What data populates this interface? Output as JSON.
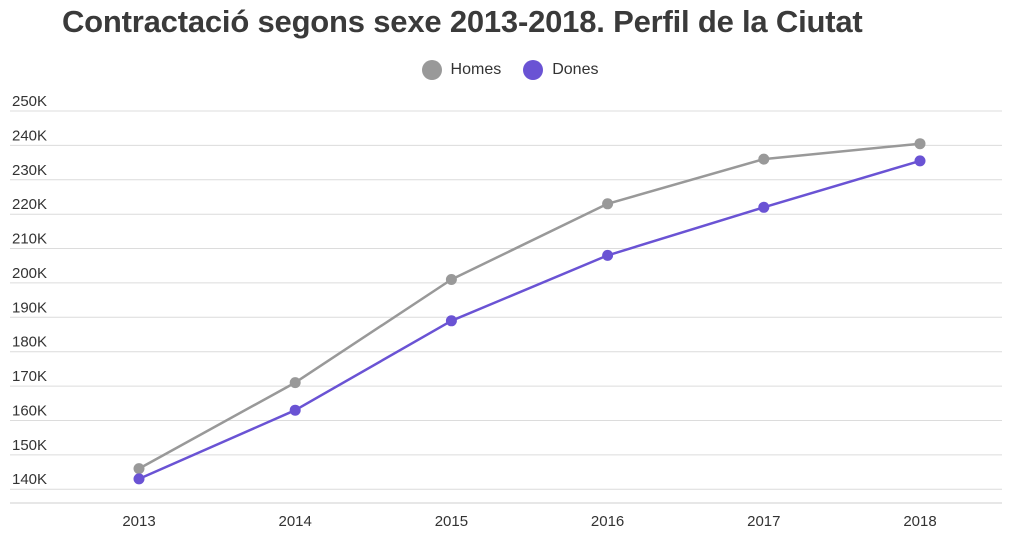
{
  "chart_data": {
    "type": "line",
    "title": "Contractació segons sexe 2013-2018. Perfil de la Ciutat",
    "xlabel": "",
    "ylabel": "",
    "categories": [
      "2013",
      "2014",
      "2015",
      "2016",
      "2017",
      "2018"
    ],
    "series": [
      {
        "name": "Homes",
        "color": "#999999",
        "values": [
          146000,
          171000,
          201000,
          223000,
          236000,
          240500
        ]
      },
      {
        "name": "Dones",
        "color": "#6a53d4",
        "values": [
          143000,
          163000,
          189000,
          208000,
          222000,
          235500
        ]
      }
    ],
    "ylim": [
      136000,
      250000
    ],
    "yticks": [
      140000,
      150000,
      160000,
      170000,
      180000,
      190000,
      200000,
      210000,
      220000,
      230000,
      240000,
      250000
    ],
    "ytick_labels": [
      "140K",
      "150K",
      "160K",
      "170K",
      "180K",
      "190K",
      "200K",
      "210K",
      "220K",
      "230K",
      "240K",
      "250K"
    ],
    "grid": true,
    "legend_position": "top-center"
  }
}
